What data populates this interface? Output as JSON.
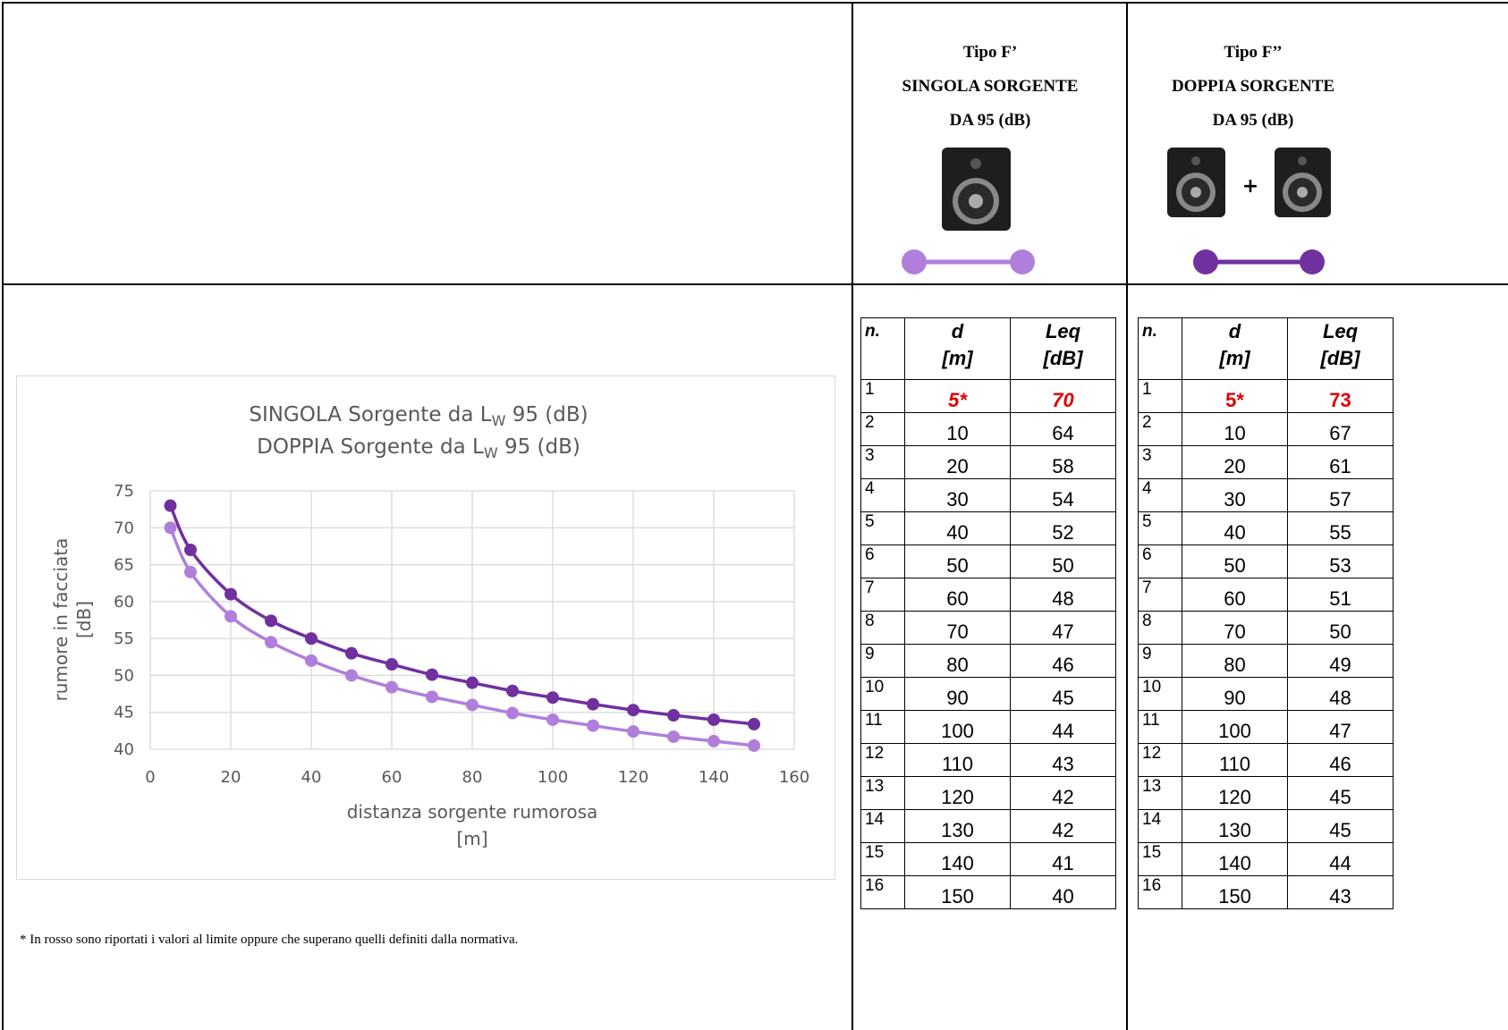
{
  "header": {
    "columns": [
      {
        "lines": [
          "Tipo F’",
          "SINGOLA SORGENTE",
          "DA 95 (dB)"
        ]
      },
      {
        "lines": [
          "Tipo F’’",
          "DOPPIA SORGENTE",
          "DA 95 (dB)"
        ],
        "plus": "+"
      }
    ]
  },
  "chart_data": {
    "type": "line",
    "title": [
      {
        "text": "SINGOLA Sorgente da L",
        "sub": "W",
        "tail": " 95 (dB)"
      },
      {
        "text": "DOPPIA Sorgente da L",
        "sub": "W",
        "tail": " 95 (dB)"
      }
    ],
    "ylabel": [
      "rumore in facciata",
      "[dB]"
    ],
    "xlabel": [
      "distanza sorgente rumorosa",
      "[m]"
    ],
    "x": [
      5,
      10,
      20,
      30,
      40,
      50,
      60,
      70,
      80,
      90,
      100,
      110,
      120,
      130,
      140,
      150
    ],
    "series": [
      {
        "color": "#b07fdb",
        "values": [
          70,
          64,
          58,
          54.5,
          52,
          50,
          48.4,
          47.1,
          46,
          44.9,
          44,
          43.2,
          42.4,
          41.7,
          41.1,
          40.5
        ]
      },
      {
        "color": "#7030a0",
        "values": [
          73,
          67,
          61,
          57.4,
          55,
          53,
          51.5,
          50.1,
          49,
          47.9,
          47,
          46.1,
          45.3,
          44.6,
          44,
          43.4
        ]
      }
    ],
    "xlim": [
      0,
      160
    ],
    "xticks": [
      0,
      20,
      40,
      60,
      80,
      100,
      120,
      140,
      160
    ],
    "ylim": [
      40,
      75
    ],
    "yticks": [
      40,
      45,
      50,
      55,
      60,
      65,
      70,
      75
    ],
    "grid": true
  },
  "tables": [
    {
      "header": [
        [
          "n."
        ],
        [
          "d",
          "[m]"
        ],
        [
          "Leq",
          "[dB]"
        ]
      ],
      "rows": [
        [
          1,
          "5*",
          70
        ],
        [
          2,
          10,
          64
        ],
        [
          3,
          20,
          58
        ],
        [
          4,
          30,
          54
        ],
        [
          5,
          40,
          52
        ],
        [
          6,
          50,
          50
        ],
        [
          7,
          60,
          48
        ],
        [
          8,
          70,
          47
        ],
        [
          9,
          80,
          46
        ],
        [
          10,
          90,
          45
        ],
        [
          11,
          100,
          44
        ],
        [
          12,
          110,
          43
        ],
        [
          13,
          120,
          42
        ],
        [
          14,
          130,
          42
        ],
        [
          15,
          140,
          41
        ],
        [
          16,
          150,
          40
        ]
      ]
    },
    {
      "header": [
        [
          "n."
        ],
        [
          "d",
          "[m]"
        ],
        [
          "Leq",
          "[dB]"
        ]
      ],
      "rows": [
        [
          1,
          "5*",
          73
        ],
        [
          2,
          10,
          67
        ],
        [
          3,
          20,
          61
        ],
        [
          4,
          30,
          57
        ],
        [
          5,
          40,
          55
        ],
        [
          6,
          50,
          53
        ],
        [
          7,
          60,
          51
        ],
        [
          8,
          70,
          50
        ],
        [
          9,
          80,
          49
        ],
        [
          10,
          90,
          48
        ],
        [
          11,
          100,
          47
        ],
        [
          12,
          110,
          46
        ],
        [
          13,
          120,
          45
        ],
        [
          14,
          130,
          45
        ],
        [
          15,
          140,
          44
        ],
        [
          16,
          150,
          43
        ]
      ]
    }
  ],
  "footnote": "* In rosso sono riportati i valori al limite oppure che superano quelli definiti dalla normativa."
}
